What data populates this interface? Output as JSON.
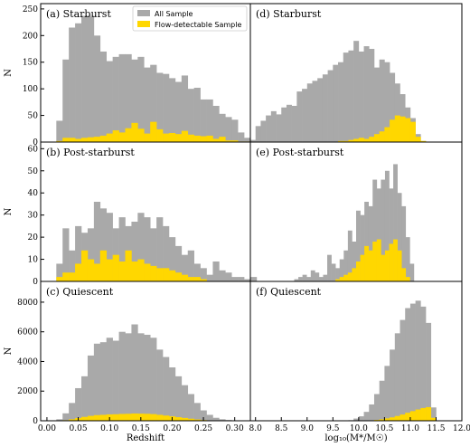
{
  "colors": {
    "all": "#a9a9a9",
    "flow": "#ffd700"
  },
  "legend": {
    "all_label": "All Sample",
    "flow_label": "Flow-detectable Sample"
  },
  "chart_data": [
    {
      "type": "bar",
      "title": "(a) Starburst",
      "xlabel": "",
      "ylabel": "N",
      "xlim": [
        -0.01,
        0.325
      ],
      "ylim": [
        0,
        260
      ],
      "xticks": [],
      "yticks": [
        0,
        50,
        100,
        150,
        200,
        250
      ],
      "bin_start": 0.015,
      "bin_width": 0.01,
      "series": [
        {
          "name": "All Sample",
          "values": [
            40,
            155,
            215,
            223,
            237,
            237,
            200,
            170,
            152,
            160,
            165,
            165,
            155,
            160,
            140,
            145,
            130,
            128,
            120,
            113,
            125,
            100,
            102,
            80,
            80,
            68,
            53,
            47,
            42,
            18,
            8,
            4,
            2
          ]
        },
        {
          "name": "Flow-detectable Sample",
          "values": [
            2,
            8,
            8,
            6,
            8,
            9,
            10,
            12,
            16,
            22,
            18,
            26,
            36,
            25,
            16,
            38,
            24,
            16,
            17,
            15,
            21,
            14,
            12,
            11,
            12,
            6,
            10,
            3,
            3,
            1,
            1,
            0,
            0
          ]
        }
      ]
    },
    {
      "type": "bar",
      "title": "(d) Starburst",
      "xlabel": "",
      "ylabel": "",
      "xlim": [
        7.9,
        12.0
      ],
      "ylim": [
        0,
        260
      ],
      "xticks": [],
      "yticks": [],
      "bin_start": 8.0,
      "bin_width": 0.1,
      "series": [
        {
          "name": "All Sample",
          "values": [
            30,
            40,
            50,
            58,
            52,
            65,
            70,
            68,
            95,
            100,
            110,
            115,
            120,
            127,
            135,
            145,
            150,
            168,
            172,
            190,
            170,
            180,
            175,
            140,
            155,
            150,
            130,
            110,
            90,
            65,
            45,
            15,
            2
          ]
        },
        {
          "name": "Flow-detectable Sample",
          "values": [
            0,
            0,
            0,
            0,
            0,
            0,
            0,
            0,
            0,
            0,
            0,
            0,
            0,
            0,
            0,
            0,
            2,
            2,
            4,
            6,
            8,
            6,
            10,
            15,
            20,
            28,
            42,
            50,
            48,
            45,
            38,
            10,
            2
          ]
        }
      ]
    },
    {
      "type": "bar",
      "title": "(b) Post-starburst",
      "xlabel": "",
      "ylabel": "N",
      "xlim": [
        -0.01,
        0.325
      ],
      "ylim": [
        0,
        63
      ],
      "xticks": [],
      "yticks": [
        0,
        10,
        20,
        30,
        40,
        50,
        60
      ],
      "bin_start": 0.015,
      "bin_width": 0.01,
      "series": [
        {
          "name": "All Sample",
          "values": [
            8,
            24,
            14,
            25,
            22,
            24,
            36,
            33,
            31,
            24,
            29,
            25,
            27,
            31,
            29,
            24,
            29,
            25,
            20,
            16,
            12,
            14,
            8,
            6,
            3,
            9,
            5,
            4,
            2,
            2,
            1,
            2,
            0
          ]
        },
        {
          "name": "Flow-detectable Sample",
          "values": [
            2,
            4,
            4,
            8,
            14,
            10,
            8,
            14,
            10,
            12,
            9,
            14,
            9,
            10,
            8,
            7,
            6,
            6,
            5,
            4,
            3,
            2,
            2,
            1,
            0,
            0,
            0,
            0,
            0,
            0,
            0,
            0,
            0
          ]
        }
      ]
    },
    {
      "type": "bar",
      "title": "(e) Post-starburst",
      "xlabel": "",
      "ylabel": "",
      "xlim": [
        7.9,
        12.0
      ],
      "ylim": [
        0,
        63
      ],
      "xticks": [],
      "yticks": [],
      "bin_start": 8.75,
      "bin_width": 0.08,
      "series": [
        {
          "name": "All Sample",
          "values": [
            1,
            2,
            3,
            2,
            5,
            4,
            2,
            3,
            12,
            8,
            6,
            10,
            14,
            23,
            18,
            32,
            30,
            36,
            34,
            46,
            42,
            46,
            50,
            42,
            53,
            40,
            34,
            20,
            8
          ]
        },
        {
          "name": "Flow-detectable Sample",
          "values": [
            0,
            0,
            0,
            0,
            0,
            0,
            0,
            0,
            0,
            0,
            1,
            2,
            3,
            4,
            6,
            9,
            12,
            16,
            14,
            18,
            19,
            12,
            14,
            17,
            19,
            14,
            6,
            2,
            0
          ]
        }
      ]
    },
    {
      "type": "bar",
      "title": "(c) Quiescent",
      "xlabel": "Redshift",
      "ylabel": "N",
      "xlim": [
        -0.01,
        0.325
      ],
      "ylim": [
        0,
        9400
      ],
      "xticks": [
        0.0,
        0.05,
        0.1,
        0.15,
        0.2,
        0.25,
        0.3
      ],
      "xtick_labels": [
        "0.00",
        "0.05",
        "0.10",
        "0.15",
        "0.20",
        "0.25",
        "0.30"
      ],
      "yticks": [
        0,
        2000,
        4000,
        6000,
        8000
      ],
      "bin_start": 0.015,
      "bin_width": 0.01,
      "series": [
        {
          "name": "All Sample",
          "values": [
            100,
            500,
            1200,
            2200,
            3000,
            4400,
            5200,
            5300,
            5600,
            5400,
            6000,
            5900,
            6500,
            5900,
            5800,
            5600,
            4800,
            4300,
            3600,
            3000,
            2400,
            1800,
            1200,
            700,
            400,
            200,
            100,
            50,
            20,
            5,
            0,
            0,
            0
          ]
        },
        {
          "name": "Flow-detectable Sample",
          "values": [
            10,
            40,
            100,
            180,
            260,
            330,
            380,
            400,
            430,
            440,
            460,
            470,
            490,
            480,
            470,
            450,
            400,
            350,
            300,
            240,
            190,
            140,
            90,
            50,
            30,
            15,
            5,
            2,
            0,
            0,
            0,
            0,
            0
          ]
        }
      ]
    },
    {
      "type": "bar",
      "title": "(f) Quiescent",
      "xlabel": "log₁₀(M*/M☉)",
      "ylabel": "",
      "xlim": [
        7.9,
        12.0
      ],
      "ylim": [
        0,
        9400
      ],
      "xticks": [
        8.0,
        8.5,
        9.0,
        9.5,
        10.0,
        10.5,
        11.0,
        11.5,
        12.0
      ],
      "xtick_labels": [
        "8.0",
        "8.5",
        "9.0",
        "9.5",
        "10.0",
        "10.5",
        "11.0",
        "11.5",
        "12.0"
      ],
      "yticks": [],
      "bin_start": 9.8,
      "bin_width": 0.1,
      "series": [
        {
          "name": "All Sample",
          "values": [
            40,
            150,
            300,
            600,
            1100,
            1800,
            2700,
            3700,
            4800,
            5900,
            6800,
            7600,
            7900,
            8100,
            7700,
            6600,
            900
          ]
        },
        {
          "name": "Flow-detectable Sample",
          "values": [
            0,
            0,
            5,
            15,
            30,
            60,
            100,
            160,
            230,
            320,
            420,
            540,
            650,
            760,
            860,
            920,
            200
          ]
        }
      ]
    }
  ]
}
